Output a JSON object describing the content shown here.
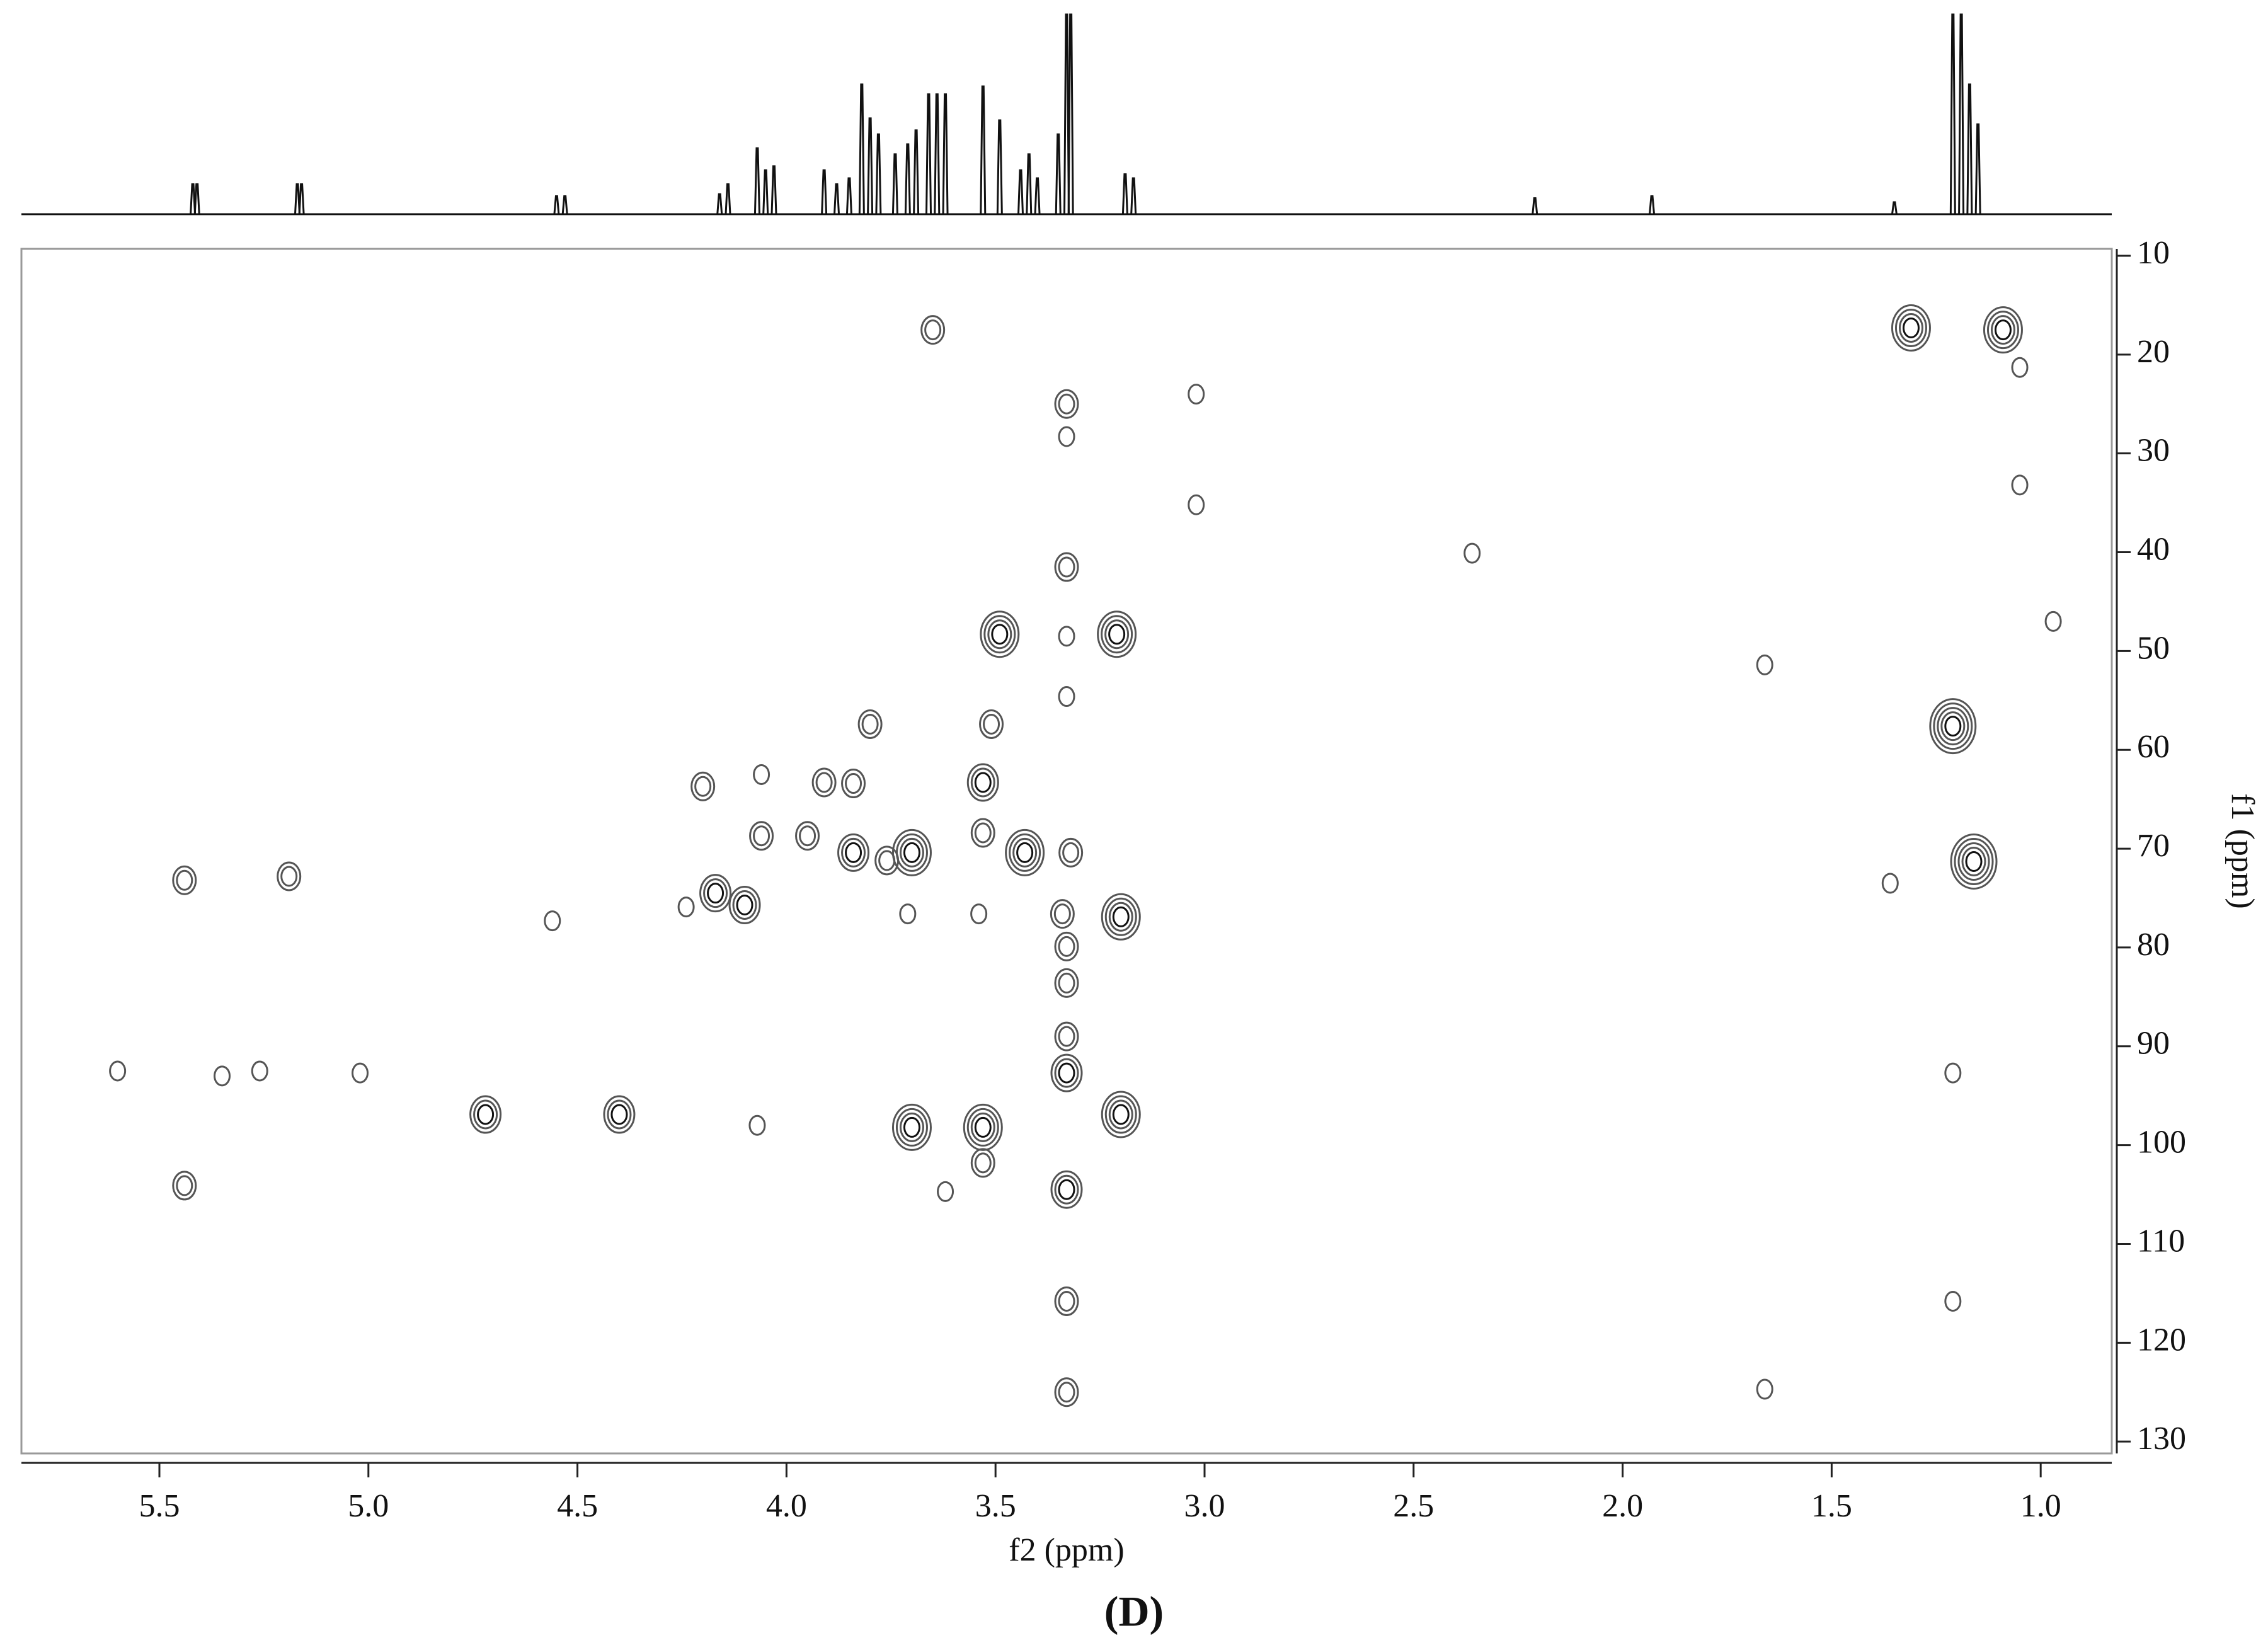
{
  "chart_data": [
    {
      "type": "spectrum",
      "color": "#111111",
      "xlim": [
        5.83,
        0.83
      ],
      "ylim": [
        0,
        100
      ],
      "x": [
        5.42,
        5.41,
        5.17,
        5.16,
        4.55,
        4.53,
        4.16,
        4.14,
        4.07,
        4.05,
        4.03,
        3.91,
        3.88,
        3.85,
        3.82,
        3.8,
        3.78,
        3.74,
        3.71,
        3.69,
        3.66,
        3.64,
        3.62,
        3.53,
        3.49,
        3.44,
        3.42,
        3.4,
        3.35,
        3.33,
        3.32,
        3.19,
        3.17,
        2.21,
        1.93,
        1.35,
        1.21,
        1.19,
        1.17,
        1.15
      ],
      "values": [
        15,
        15,
        15,
        15,
        9,
        9,
        10,
        15,
        33,
        22,
        24,
        22,
        15,
        18,
        65,
        48,
        40,
        30,
        35,
        42,
        60,
        60,
        60,
        64,
        47,
        22,
        30,
        18,
        40,
        100,
        100,
        20,
        18,
        8,
        9,
        6,
        100,
        100,
        65,
        45
      ]
    },
    {
      "type": "contour",
      "color": "#555555",
      "x_label": "f2 (ppm)",
      "y_label": "f1 (ppm)",
      "caption": "(D)",
      "xlim": [
        5.83,
        0.83
      ],
      "ylim": [
        9.3,
        131.2
      ],
      "xticks": [
        5.5,
        {
          "value": 5,
          "label": "5.0"
        },
        4.5,
        {
          "value": 4,
          "label": "4.0"
        },
        3.5,
        {
          "value": 3,
          "label": "3.0"
        },
        2.5,
        {
          "value": 2,
          "label": "2.0"
        },
        1.5,
        {
          "value": 1,
          "label": "1.0"
        }
      ],
      "yticks": [
        10,
        20,
        30,
        40,
        50,
        60,
        70,
        80,
        90,
        100,
        110,
        120,
        130
      ],
      "x": [
        3.65,
        1.31,
        1.09,
        3.02,
        3.02,
        2.36,
        1.05,
        1.05,
        0.97,
        3.49,
        3.21,
        1.66,
        1.21,
        3.8,
        3.51,
        4.2,
        4.06,
        3.91,
        3.84,
        3.53,
        1.16,
        1.36,
        5.44,
        5.19,
        4.56,
        4.06,
        4.1,
        4.17,
        4.24,
        3.84,
        3.7,
        3.76,
        3.95,
        3.53,
        3.43,
        3.32,
        3.71,
        3.54,
        3.34,
        3.2,
        5.6,
        5.35,
        5.26,
        5.02,
        4.72,
        4.4,
        3.2,
        3.7,
        3.53,
        3.53,
        3.62,
        5.44,
        4.07,
        1.21,
        1.21,
        1.66,
        3.33,
        3.33,
        3.33,
        3.33,
        3.33,
        3.33,
        3.33,
        3.33,
        3.33,
        3.33,
        3.33,
        3.33
      ],
      "values": [
        17.5,
        17.3,
        17.5,
        24.0,
        35.2,
        40.1,
        33.2,
        21.3,
        47.0,
        48.3,
        48.3,
        51.4,
        57.6,
        57.4,
        57.4,
        63.7,
        62.5,
        63.3,
        63.4,
        63.3,
        71.3,
        73.5,
        73.2,
        72.8,
        77.3,
        68.7,
        75.7,
        74.5,
        75.9,
        70.4,
        70.4,
        71.2,
        68.7,
        68.4,
        70.4,
        70.4,
        76.6,
        76.6,
        76.6,
        76.9,
        92.5,
        93.0,
        92.5,
        92.7,
        96.9,
        96.9,
        96.9,
        98.2,
        98.2,
        101.8,
        104.7,
        104.1,
        98.0,
        92.7,
        115.8,
        124.7,
        25.0,
        28.3,
        41.5,
        48.5,
        54.6,
        79.9,
        83.6,
        89.0,
        92.7,
        104.5,
        115.8,
        125.0
      ],
      "levels": [
        2,
        4,
        4,
        1,
        1,
        1,
        1,
        1,
        1,
        4,
        4,
        1,
        5,
        2,
        2,
        2,
        1,
        2,
        2,
        3,
        5,
        1,
        2,
        2,
        1,
        2,
        3,
        3,
        1,
        3,
        4,
        2,
        2,
        2,
        4,
        2,
        1,
        1,
        2,
        4,
        1,
        1,
        1,
        1,
        3,
        3,
        4,
        4,
        4,
        2,
        1,
        2,
        1,
        1,
        1,
        1,
        2,
        1,
        2,
        1,
        1,
        2,
        2,
        2,
        3,
        3,
        2,
        2
      ]
    }
  ]
}
